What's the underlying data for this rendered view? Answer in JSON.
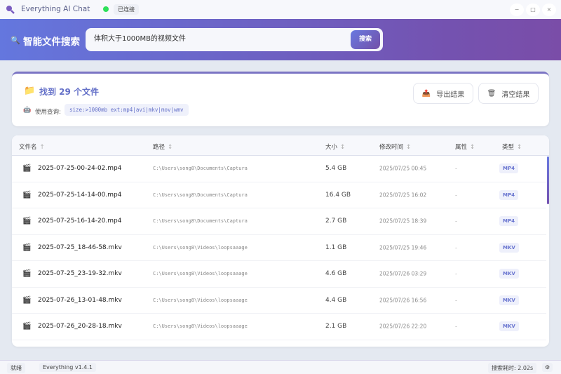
{
  "titlebar": {
    "title": "Everything AI Chat",
    "status": "已连接",
    "minimize": "−",
    "maximize": "□",
    "close": "×"
  },
  "header": {
    "title": "智能文件搜索",
    "search_value": "体积大于1000MB的视频文件",
    "search_button": "搜索"
  },
  "results": {
    "found": "找到 29 个文件",
    "query_label": "使用查询:",
    "query": "size:>1000mb ext:mp4|avi|mkv|mov|wmv",
    "export": "导出结果",
    "clear": "清空结果"
  },
  "table": {
    "headers": {
      "name": "文件名",
      "path": "路径",
      "size": "大小",
      "modified": "修改时间",
      "attr": "属性",
      "type": "类型"
    },
    "sort_asc": "↑",
    "sort_none": "↕",
    "rows": [
      {
        "name": "2025-07-25-00-24-02.mp4",
        "path": "C:\\Users\\song8\\Documents\\Captura",
        "size": "5.4 GB",
        "modified": "2025/07/25 00:45",
        "attr": "-",
        "type": "MP4"
      },
      {
        "name": "2025-07-25-14-14-00.mp4",
        "path": "C:\\Users\\song8\\Documents\\Captura",
        "size": "16.4 GB",
        "modified": "2025/07/25 16:02",
        "attr": "-",
        "type": "MP4"
      },
      {
        "name": "2025-07-25-16-14-20.mp4",
        "path": "C:\\Users\\song8\\Documents\\Captura",
        "size": "2.7 GB",
        "modified": "2025/07/25 18:39",
        "attr": "-",
        "type": "MP4"
      },
      {
        "name": "2025-07-25_18-46-58.mkv",
        "path": "C:\\Users\\song8\\Videos\\loopsaaage",
        "size": "1.1 GB",
        "modified": "2025/07/25 19:46",
        "attr": "-",
        "type": "MKV"
      },
      {
        "name": "2025-07-25_23-19-32.mkv",
        "path": "C:\\Users\\song8\\Videos\\loopsaaage",
        "size": "4.6 GB",
        "modified": "2025/07/26 03:29",
        "attr": "-",
        "type": "MKV"
      },
      {
        "name": "2025-07-26_13-01-48.mkv",
        "path": "C:\\Users\\song8\\Videos\\loopsaaage",
        "size": "4.4 GB",
        "modified": "2025/07/26 16:56",
        "attr": "-",
        "type": "MKV"
      },
      {
        "name": "2025-07-26_20-28-18.mkv",
        "path": "C:\\Users\\song8\\Videos\\loopsaaage",
        "size": "2.1 GB",
        "modified": "2025/07/26 22:20",
        "attr": "-",
        "type": "MKV"
      }
    ]
  },
  "statusbar": {
    "state": "就绪",
    "version": "Everything v1.4.1",
    "elapsed": "搜索耗时: 2.02s"
  },
  "colors": {
    "accent": "#667eea",
    "accent2": "#764ba2",
    "connected": "#2ee05a"
  },
  "icons": {
    "app": "magnifier-icon",
    "folder": "folder-icon",
    "file": "clapperboard-icon",
    "export": "export-icon",
    "clear": "trash-icon",
    "query": "robot-icon",
    "settings": "gear-icon"
  }
}
